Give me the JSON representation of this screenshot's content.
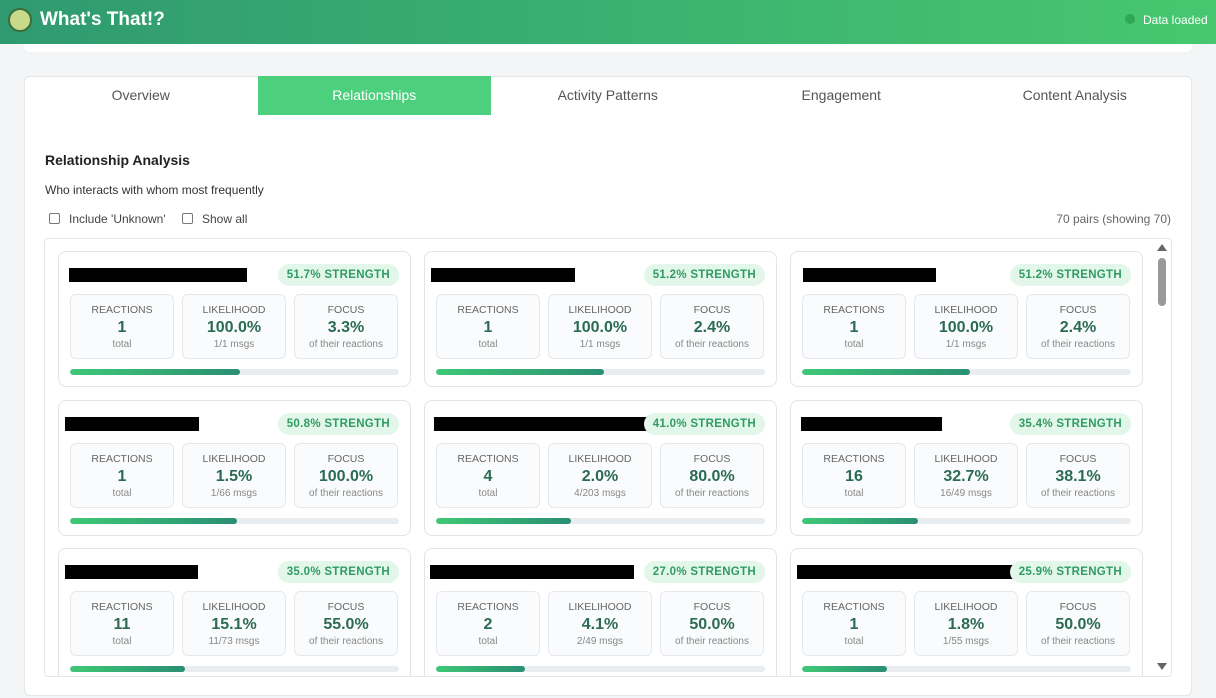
{
  "header": {
    "title": "What's That!?",
    "status": "Data loaded"
  },
  "tabs": {
    "items": [
      "Overview",
      "Relationships",
      "Activity Patterns",
      "Engagement",
      "Content Analysis"
    ],
    "active": 1
  },
  "section": {
    "title": "Relationship Analysis",
    "subtitle": "Who interacts with whom most frequently",
    "options": [
      "Include 'Unknown'",
      "Show all"
    ],
    "count": "70 pairs (showing 70)"
  },
  "stat_labels": [
    "REACTIONS",
    "LIKELIHOOD",
    "FOCUS"
  ],
  "cards": [
    {
      "strength": {
        "value": 51.7,
        "label": "51.7% STRENGTH"
      },
      "stats": [
        {
          "value": "1",
          "sub": "total"
        },
        {
          "value": "100.0%",
          "sub": "1/1 msgs"
        },
        {
          "value": "3.3%",
          "sub": "of their reactions"
        }
      ]
    },
    {
      "strength": {
        "value": 51.2,
        "label": "51.2% STRENGTH"
      },
      "stats": [
        {
          "value": "1",
          "sub": "total"
        },
        {
          "value": "100.0%",
          "sub": "1/1 msgs"
        },
        {
          "value": "2.4%",
          "sub": "of their reactions"
        }
      ]
    },
    {
      "strength": {
        "value": 51.2,
        "label": "51.2% STRENGTH"
      },
      "stats": [
        {
          "value": "1",
          "sub": "total"
        },
        {
          "value": "100.0%",
          "sub": "1/1 msgs"
        },
        {
          "value": "2.4%",
          "sub": "of their reactions"
        }
      ]
    },
    {
      "strength": {
        "value": 50.8,
        "label": "50.8% STRENGTH"
      },
      "stats": [
        {
          "value": "1",
          "sub": "total"
        },
        {
          "value": "1.5%",
          "sub": "1/66 msgs"
        },
        {
          "value": "100.0%",
          "sub": "of their reactions"
        }
      ]
    },
    {
      "strength": {
        "value": 41.0,
        "label": "41.0% STRENGTH"
      },
      "stats": [
        {
          "value": "4",
          "sub": "total"
        },
        {
          "value": "2.0%",
          "sub": "4/203 msgs"
        },
        {
          "value": "80.0%",
          "sub": "of their reactions"
        }
      ]
    },
    {
      "strength": {
        "value": 35.4,
        "label": "35.4% STRENGTH"
      },
      "stats": [
        {
          "value": "16",
          "sub": "total"
        },
        {
          "value": "32.7%",
          "sub": "16/49 msgs"
        },
        {
          "value": "38.1%",
          "sub": "of their reactions"
        }
      ]
    },
    {
      "strength": {
        "value": 35.0,
        "label": "35.0% STRENGTH"
      },
      "stats": [
        {
          "value": "11",
          "sub": "total"
        },
        {
          "value": "15.1%",
          "sub": "11/73 msgs"
        },
        {
          "value": "55.0%",
          "sub": "of their reactions"
        }
      ]
    },
    {
      "strength": {
        "value": 27.0,
        "label": "27.0% STRENGTH"
      },
      "stats": [
        {
          "value": "2",
          "sub": "total"
        },
        {
          "value": "4.1%",
          "sub": "2/49 msgs"
        },
        {
          "value": "50.0%",
          "sub": "of their reactions"
        }
      ]
    },
    {
      "strength": {
        "value": 25.9,
        "label": "25.9% STRENGTH"
      },
      "stats": [
        {
          "value": "1",
          "sub": "total"
        },
        {
          "value": "1.8%",
          "sub": "1/55 msgs"
        },
        {
          "value": "50.0%",
          "sub": "of their reactions"
        }
      ]
    }
  ]
}
